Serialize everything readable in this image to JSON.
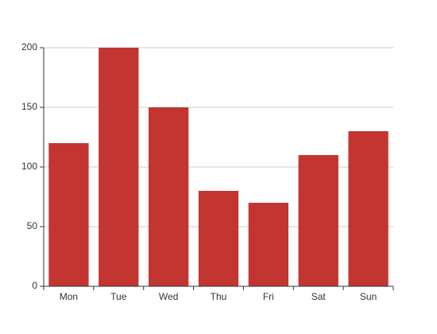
{
  "chart_data": {
    "type": "bar",
    "categories": [
      "Mon",
      "Tue",
      "Wed",
      "Thu",
      "Fri",
      "Sat",
      "Sun"
    ],
    "values": [
      120,
      200,
      150,
      80,
      70,
      110,
      130
    ],
    "y_ticks": [
      0,
      50,
      100,
      150,
      200
    ],
    "ylim": [
      0,
      200
    ],
    "grid": true,
    "title": "",
    "xlabel": "",
    "ylabel": "",
    "colors": {
      "bar": "#c23531",
      "grid": "#cccccc",
      "axis": "#333333",
      "text": "#333333"
    }
  }
}
